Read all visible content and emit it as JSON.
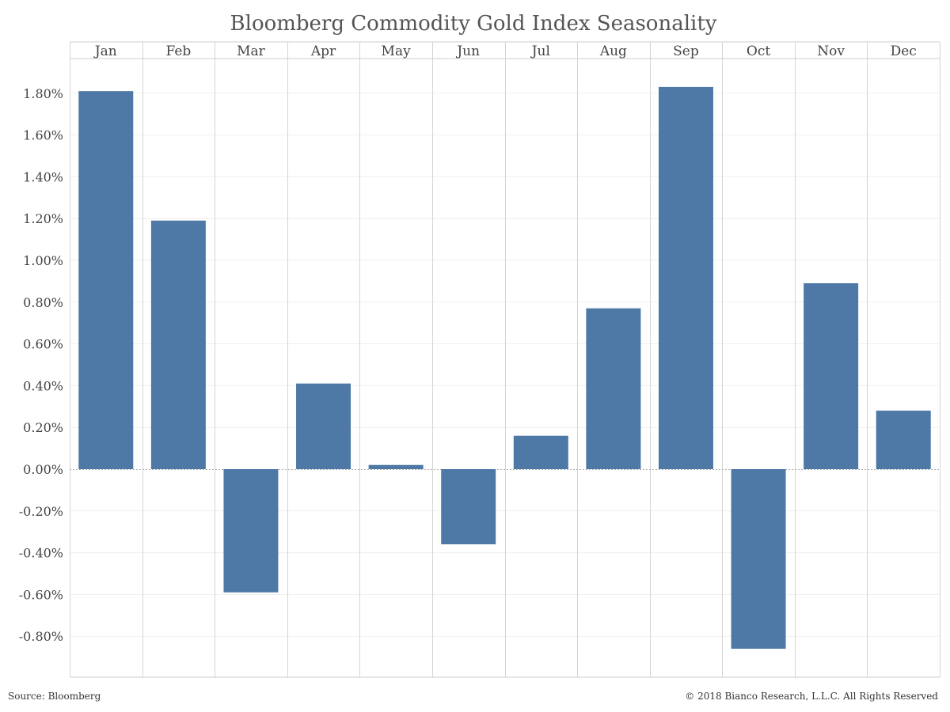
{
  "chart_data": {
    "type": "bar",
    "title": "Bloomberg Commodity Gold Index Seasonality",
    "categories": [
      "Jan",
      "Feb",
      "Mar",
      "Apr",
      "May",
      "Jun",
      "Jul",
      "Aug",
      "Sep",
      "Oct",
      "Nov",
      "Dec"
    ],
    "values": [
      1.81,
      1.19,
      -0.59,
      0.41,
      0.02,
      -0.36,
      0.16,
      0.77,
      1.83,
      -0.86,
      0.89,
      0.28
    ],
    "unit": "%",
    "ylim": [
      -1.0,
      1.95
    ],
    "yticks": [
      1.8,
      1.6,
      1.4,
      1.2,
      1.0,
      0.8,
      0.6,
      0.4,
      0.2,
      0.0,
      -0.2,
      -0.4,
      -0.6,
      -0.8
    ],
    "ytick_labels": [
      "1.80%",
      "1.60%",
      "1.40%",
      "1.20%",
      "1.00%",
      "0.80%",
      "0.60%",
      "0.40%",
      "0.20%",
      "0.00%",
      "-0.20%",
      "-0.40%",
      "-0.60%",
      "-0.80%"
    ],
    "bar_color": "#4e79a7",
    "grid": true,
    "category_labels_position": "top"
  },
  "footer": {
    "source": "Source: Bloomberg",
    "copyright": "© 2018 Bianco Research, L.L.C. All Rights Reserved"
  }
}
